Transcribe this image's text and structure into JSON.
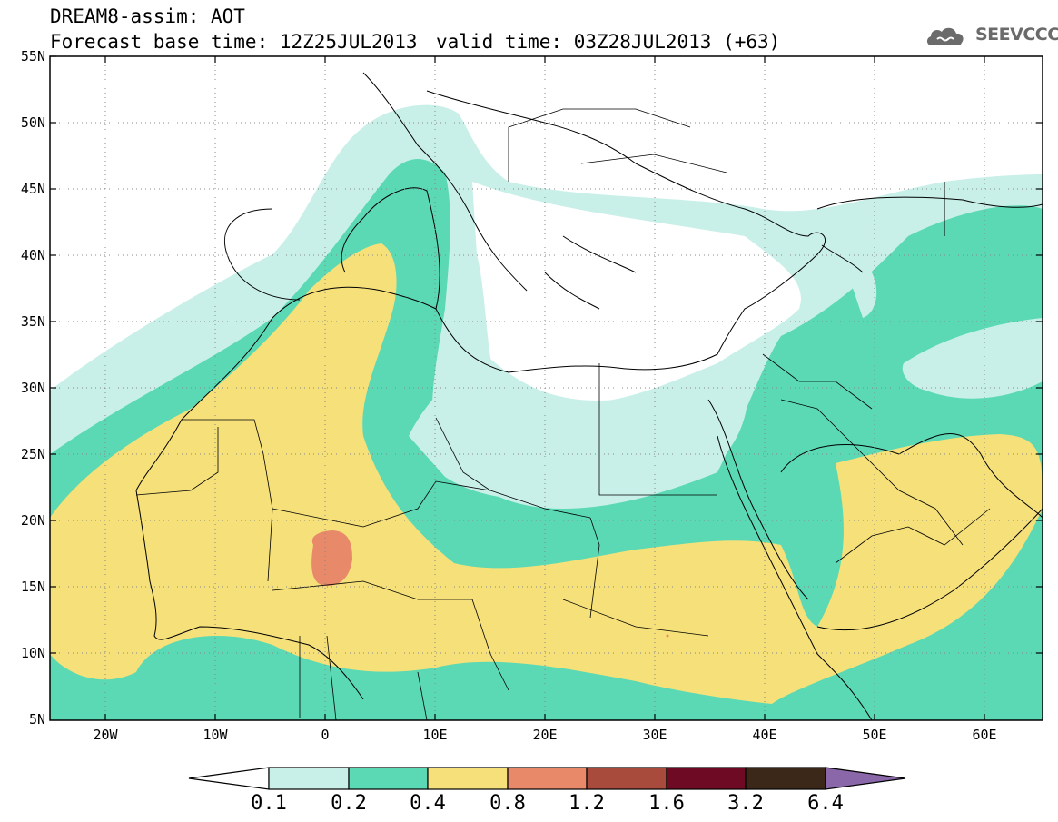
{
  "header": {
    "line1": "DREAM8-assim: AOT",
    "line2_left": "Forecast base time: 12Z25JUL2013",
    "line2_right": "valid time: 03Z28JUL2013 (+63)",
    "logo_text": "SEEVCCC"
  },
  "map": {
    "lat_labels": [
      "55N",
      "50N",
      "45N",
      "40N",
      "35N",
      "30N",
      "25N",
      "20N",
      "15N",
      "10N",
      "5N"
    ],
    "lon_labels": [
      "20W",
      "10W",
      "0",
      "10E",
      "20E",
      "30E",
      "40E",
      "50E",
      "60E"
    ],
    "lon_range": [
      -25,
      65
    ],
    "lat_range": [
      5,
      55
    ]
  },
  "colorbar": {
    "labels": [
      "0.1",
      "0.2",
      "0.4",
      "0.8",
      "1.2",
      "1.6",
      "3.2",
      "6.4"
    ],
    "colors": [
      "#ffffff",
      "#c8f0e8",
      "#5ad9b4",
      "#f5e07a",
      "#e8896a",
      "#a84a3c",
      "#6e0a24",
      "#3b2818",
      "#8a67a8"
    ]
  },
  "field_colors": {
    "0.1-0.2": "#c8f0e8",
    "0.2-0.4": "#5ad9b4",
    "0.4-0.8": "#f5e07a",
    "0.8-1.2": "#e8896a"
  }
}
